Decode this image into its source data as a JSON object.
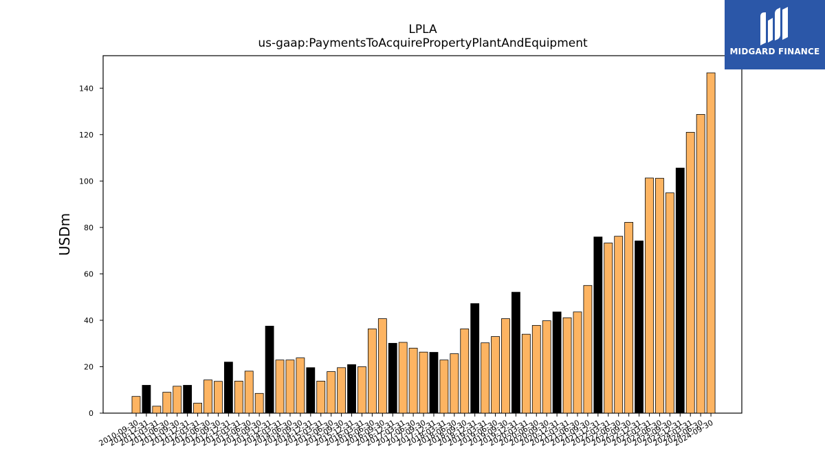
{
  "chart_data": {
    "type": "bar",
    "title": "LPLA",
    "subtitle": "us-gaap:PaymentsToAcquirePropertyPlantAndEquipment",
    "xlabel": "",
    "ylabel": "USDm",
    "ylim": [
      0,
      154
    ],
    "yticks": [
      0,
      20,
      40,
      60,
      80,
      100,
      120,
      140
    ],
    "grid": false,
    "colors": {
      "quarter": "#fdb462",
      "fiscal_year_end": "#000000",
      "edge": "#000000"
    },
    "categories": [
      "2010-09-30",
      "2010-12-31",
      "2011-03-31",
      "2011-06-30",
      "2011-09-30",
      "2011-12-31",
      "2012-03-31",
      "2012-06-30",
      "2012-09-30",
      "2012-12-31",
      "2013-03-31",
      "2013-06-30",
      "2013-09-30",
      "2013-12-31",
      "2014-03-31",
      "2014-06-30",
      "2014-09-30",
      "2014-12-31",
      "2015-03-31",
      "2015-06-30",
      "2015-09-30",
      "2015-12-31",
      "2016-03-31",
      "2016-06-30",
      "2016-09-30",
      "2016-12-31",
      "2017-03-31",
      "2017-06-30",
      "2017-09-30",
      "2017-12-31",
      "2018-03-31",
      "2018-06-30",
      "2018-09-30",
      "2018-12-31",
      "2019-03-31",
      "2019-06-30",
      "2019-09-30",
      "2019-12-31",
      "2020-03-31",
      "2020-06-30",
      "2020-09-30",
      "2020-12-31",
      "2021-03-31",
      "2021-06-30",
      "2021-09-30",
      "2021-12-31",
      "2022-03-31",
      "2022-06-30",
      "2022-09-30",
      "2022-12-31",
      "2023-03-31",
      "2023-06-30",
      "2023-09-30",
      "2023-12-31",
      "2024-03-31",
      "2024-06-30",
      "2024-09-30"
    ],
    "values": [
      7.2,
      12.0,
      3.0,
      9.0,
      11.6,
      12.0,
      4.3,
      14.3,
      13.7,
      22.0,
      13.8,
      18.1,
      8.5,
      37.5,
      22.9,
      22.9,
      23.8,
      19.6,
      13.8,
      17.9,
      19.6,
      20.9,
      20.0,
      36.3,
      40.7,
      30.1,
      30.5,
      28.0,
      26.3,
      26.2,
      22.9,
      25.6,
      36.3,
      47.2,
      30.3,
      33.0,
      40.7,
      52.1,
      34.0,
      37.8,
      39.8,
      43.6,
      41.1,
      43.6,
      55.0,
      75.9,
      73.3,
      76.2,
      82.2,
      74.2,
      101.3,
      101.2,
      94.9,
      105.6,
      121.0,
      128.7,
      146.6
    ],
    "fiscal_year_end": [
      false,
      true,
      false,
      false,
      false,
      true,
      false,
      false,
      false,
      true,
      false,
      false,
      false,
      true,
      false,
      false,
      false,
      true,
      false,
      false,
      false,
      true,
      false,
      false,
      false,
      true,
      false,
      false,
      false,
      true,
      false,
      false,
      false,
      true,
      false,
      false,
      false,
      true,
      false,
      false,
      false,
      true,
      false,
      false,
      false,
      true,
      false,
      false,
      false,
      true,
      false,
      false,
      false,
      true,
      false,
      false,
      false
    ]
  },
  "logo": {
    "text": "MIDGARD FINANCE",
    "icon": "midgard-logo-icon"
  }
}
